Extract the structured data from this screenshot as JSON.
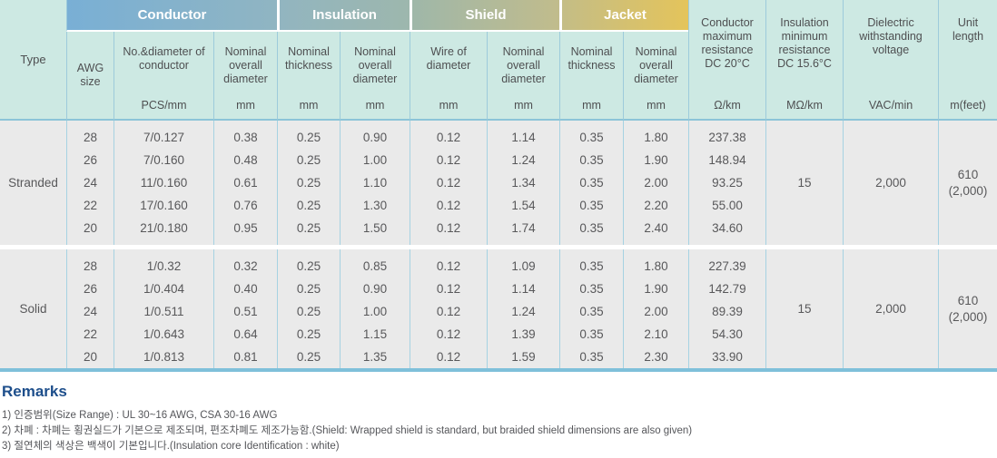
{
  "table": {
    "type_header": "Type",
    "groups": {
      "conductor": "Conductor",
      "insulation": "Insulation",
      "shield": "Shield",
      "jacket": "Jacket"
    },
    "subheaders": {
      "awg": "AWG size",
      "conductor_count": {
        "label": "No.&diameter of conductor",
        "unit": "PCS/mm"
      },
      "conductor_od": {
        "label": "Nominal overall diameter",
        "unit": "mm"
      },
      "insulation_thickness": {
        "label": "Nominal thickness",
        "unit": "mm"
      },
      "insulation_od": {
        "label": "Nominal overall diameter",
        "unit": "mm"
      },
      "shield_wire": {
        "label": "Wire of diameter",
        "unit": "mm"
      },
      "shield_od": {
        "label": "Nominal overall diameter",
        "unit": "mm"
      },
      "jacket_thickness": {
        "label": "Nominal thickness",
        "unit": "mm"
      },
      "jacket_od": {
        "label": "Nominal overall diameter",
        "unit": "mm"
      }
    },
    "tall_headers": {
      "resistance": {
        "label": "Conductor maximum resistance DC 20°C",
        "unit": "Ω/km"
      },
      "insulation_min": {
        "label": "Insulation minimum resistance DC 15.6°C",
        "unit": "MΩ/km"
      },
      "dielectric": {
        "label": "Dielectric withstanding voltage",
        "unit": "VAC/min"
      },
      "unit_length": {
        "label": "Unit length",
        "unit": "m(feet)"
      }
    },
    "sections": [
      {
        "type": "Stranded",
        "awg": [
          "28",
          "26",
          "24",
          "22",
          "20"
        ],
        "conductor_pcs_mm": [
          "7/0.127",
          "7/0.160",
          "11/0.160",
          "17/0.160",
          "21/0.180"
        ],
        "conductor_od": [
          "0.38",
          "0.48",
          "0.61",
          "0.76",
          "0.95"
        ],
        "insulation_thickness": [
          "0.25",
          "0.25",
          "0.25",
          "0.25",
          "0.25"
        ],
        "insulation_od": [
          "0.90",
          "1.00",
          "1.10",
          "1.30",
          "1.50"
        ],
        "shield_wire": [
          "0.12",
          "0.12",
          "0.12",
          "0.12",
          "0.12"
        ],
        "shield_od": [
          "1.14",
          "1.24",
          "1.34",
          "1.54",
          "1.74"
        ],
        "jacket_thickness": [
          "0.35",
          "0.35",
          "0.35",
          "0.35",
          "0.35"
        ],
        "jacket_od": [
          "1.80",
          "1.90",
          "2.00",
          "2.20",
          "2.40"
        ],
        "resistance": [
          "237.38",
          "148.94",
          "93.25",
          "55.00",
          "34.60"
        ],
        "insulation_min_resistance": "15",
        "dielectric_voltage": "2,000",
        "unit_length_m": "610",
        "unit_length_feet": "(2,000)"
      },
      {
        "type": "Solid",
        "awg": [
          "28",
          "26",
          "24",
          "22",
          "20"
        ],
        "conductor_pcs_mm": [
          "1/0.32",
          "1/0.404",
          "1/0.511",
          "1/0.643",
          "1/0.813"
        ],
        "conductor_od": [
          "0.32",
          "0.40",
          "0.51",
          "0.64",
          "0.81"
        ],
        "insulation_thickness": [
          "0.25",
          "0.25",
          "0.25",
          "0.25",
          "0.25"
        ],
        "insulation_od": [
          "0.85",
          "0.90",
          "1.00",
          "1.15",
          "1.35"
        ],
        "shield_wire": [
          "0.12",
          "0.12",
          "0.12",
          "0.12",
          "0.12"
        ],
        "shield_od": [
          "1.09",
          "1.14",
          "1.24",
          "1.39",
          "1.59"
        ],
        "jacket_thickness": [
          "0.35",
          "0.35",
          "0.35",
          "0.35",
          "0.35"
        ],
        "jacket_od": [
          "1.80",
          "1.90",
          "2.00",
          "2.10",
          "2.30"
        ],
        "resistance": [
          "227.39",
          "142.79",
          "89.39",
          "54.30",
          "33.90"
        ],
        "insulation_min_resistance": "15",
        "dielectric_voltage": "2,000",
        "unit_length_m": "610",
        "unit_length_feet": "(2,000)"
      }
    ]
  },
  "remarks": {
    "title": "Remarks",
    "items": [
      "1) 인증범위(Size Range) : UL 30~16 AWG, CSA 30-16 AWG",
      "2)  차폐 : 차폐는 횡권실드가 기본으로 제조되며, 편조차폐도 제조가능함.(Shield: Wrapped shield is standard, but braided shield dimensions are also given)",
      "3) 절연체의 색상은 백색이 기본입니다.(Insulation core Identification : white)"
    ]
  },
  "colors": {
    "group_gradient_start": "#79afd5",
    "group_gradient_mid": "#9fb7a9",
    "group_gradient_end": "#e4c45b",
    "header_bg": "#cde9e3",
    "body_bg": "#eaeaea",
    "border_blue": "#a6d2e2",
    "header_rule": "#8cc4d8",
    "bottom_border": "#7fc0da",
    "remarks_title": "#1d4e8b"
  }
}
